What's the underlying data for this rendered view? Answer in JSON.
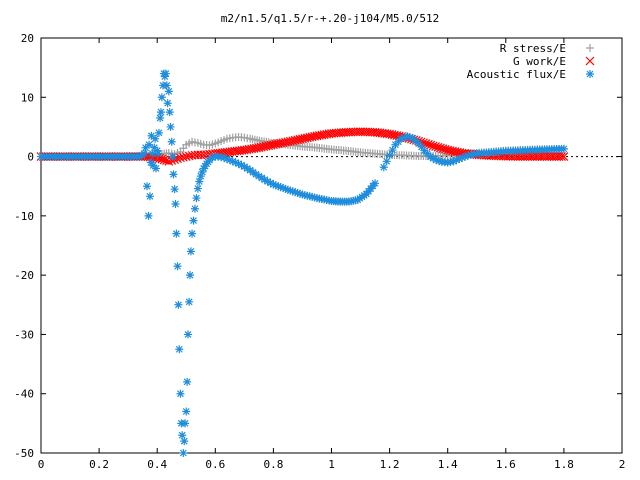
{
  "chart_data": {
    "type": "scatter",
    "title": "m2/n1.5/q1.5/r-+.20-j104/M5.0/512",
    "xlabel": "",
    "ylabel": "",
    "xlim": [
      0,
      2
    ],
    "ylim": [
      -50,
      20
    ],
    "grid": false,
    "legend_position": "top-right",
    "x_ticks": [
      "0",
      "0.2",
      "0.4",
      "0.6",
      "0.8",
      "1",
      "1.2",
      "1.4",
      "1.6",
      "1.8",
      "2"
    ],
    "y_ticks": [
      "20",
      "10",
      "0",
      "-10",
      "-20",
      "-30",
      "-40",
      "-50"
    ],
    "series": [
      {
        "name": "R stress/E",
        "marker": "plus",
        "color": "#a0a0a0",
        "x": [
          0.0,
          0.1,
          0.2,
          0.3,
          0.36,
          0.4,
          0.44,
          0.46,
          0.48,
          0.5,
          0.52,
          0.54,
          0.56,
          0.58,
          0.6,
          0.62,
          0.64,
          0.66,
          0.68,
          0.7,
          0.72,
          0.76,
          0.8,
          0.85,
          0.9,
          0.95,
          1.0,
          1.05,
          1.1,
          1.15,
          1.2,
          1.25,
          1.3,
          1.35,
          1.4,
          1.45,
          1.5,
          1.55,
          1.6,
          1.65,
          1.7,
          1.75,
          1.8
        ],
        "y": [
          0,
          0,
          0,
          0,
          0.1,
          0.3,
          0.6,
          0.4,
          0.8,
          2.0,
          2.5,
          2.3,
          2.0,
          1.9,
          2.2,
          2.6,
          3.0,
          3.2,
          3.3,
          3.2,
          3.0,
          2.6,
          2.3,
          2.0,
          1.7,
          1.5,
          1.2,
          1.0,
          0.7,
          0.5,
          0.3,
          0.2,
          0.1,
          0.1,
          0.2,
          0.4,
          0.6,
          0.8,
          1.0,
          1.1,
          1.2,
          1.25,
          1.3
        ]
      },
      {
        "name": "G work/E",
        "marker": "cross",
        "color": "#ff0000",
        "x": [
          0.0,
          0.1,
          0.2,
          0.3,
          0.36,
          0.4,
          0.44,
          0.46,
          0.48,
          0.5,
          0.52,
          0.54,
          0.56,
          0.58,
          0.6,
          0.65,
          0.7,
          0.75,
          0.8,
          0.85,
          0.9,
          0.95,
          1.0,
          1.05,
          1.1,
          1.15,
          1.2,
          1.25,
          1.3,
          1.35,
          1.4,
          1.45,
          1.5,
          1.55,
          1.6,
          1.65,
          1.7,
          1.75,
          1.8
        ],
        "y": [
          0,
          0,
          0,
          0,
          0,
          -0.2,
          -0.8,
          -0.5,
          -0.2,
          0,
          0.2,
          0.3,
          0.3,
          0.4,
          0.5,
          0.8,
          1.1,
          1.5,
          2.0,
          2.5,
          3.0,
          3.5,
          3.9,
          4.1,
          4.2,
          4.1,
          3.8,
          3.3,
          2.6,
          1.8,
          1.1,
          0.6,
          0.3,
          0.15,
          0.05,
          0,
          0,
          0,
          0
        ]
      },
      {
        "name": "Acoustic flux/E",
        "marker": "star",
        "color": "#1f8ddc",
        "x": [
          0.0,
          0.02,
          0.04,
          0.06,
          0.08,
          0.1,
          0.12,
          0.14,
          0.16,
          0.18,
          0.2,
          0.22,
          0.24,
          0.26,
          0.28,
          0.3,
          0.32,
          0.34,
          0.355,
          0.36,
          0.365,
          0.37,
          0.372,
          0.375,
          0.378,
          0.38,
          0.383,
          0.386,
          0.39,
          0.393,
          0.396,
          0.4,
          0.403,
          0.406,
          0.41,
          0.413,
          0.416,
          0.42,
          0.423,
          0.426,
          0.43,
          0.433,
          0.436,
          0.44,
          0.443,
          0.446,
          0.45,
          0.453,
          0.456,
          0.46,
          0.463,
          0.466,
          0.47,
          0.473,
          0.476,
          0.48,
          0.483,
          0.486,
          0.49,
          0.493,
          0.496,
          0.5,
          0.503,
          0.506,
          0.51,
          0.513,
          0.516,
          0.52,
          0.525,
          0.53,
          0.535,
          0.54,
          0.545,
          0.55,
          0.555,
          0.56,
          0.565,
          0.57,
          0.575,
          0.58,
          0.59,
          0.6,
          0.61,
          0.62,
          0.63,
          0.64,
          0.65,
          0.66,
          0.68,
          0.7,
          0.72,
          0.74,
          0.76,
          0.78,
          0.8,
          0.85,
          0.9,
          0.95,
          1.0,
          1.03,
          1.06,
          1.09,
          1.12,
          1.15,
          1.18,
          1.2,
          1.22,
          1.24,
          1.26,
          1.28,
          1.3,
          1.32,
          1.34,
          1.36,
          1.38,
          1.4,
          1.42,
          1.44,
          1.46,
          1.48,
          1.5,
          1.55,
          1.6,
          1.65,
          1.7,
          1.75,
          1.8
        ],
        "y": [
          0,
          0,
          0,
          0,
          0,
          0,
          0,
          0,
          0,
          0,
          0,
          0,
          0,
          0,
          0,
          0,
          0,
          0,
          0.5,
          1.5,
          -5,
          -10,
          2,
          -6.7,
          -1,
          3.5,
          0.5,
          -1.5,
          1.5,
          3,
          -2,
          1,
          0.5,
          4,
          6.5,
          7.5,
          10,
          12,
          14,
          13.5,
          14,
          12,
          9,
          11,
          7.5,
          5,
          2.5,
          0,
          -3,
          -5.5,
          -8,
          -13,
          -18.5,
          -25,
          -32.5,
          -40,
          -45,
          -47,
          -50,
          -48,
          -45,
          -43,
          -38,
          -30,
          -24.5,
          -20,
          -16,
          -13,
          -10.8,
          -8.8,
          -7,
          -5.4,
          -4.2,
          -3.3,
          -2.6,
          -2,
          -1.6,
          -1.2,
          -0.9,
          -0.6,
          -0.2,
          0,
          0,
          -0.1,
          -0.2,
          -0.4,
          -0.6,
          -0.8,
          -1.2,
          -1.7,
          -2.3,
          -3,
          -3.6,
          -4.2,
          -4.7,
          -5.6,
          -6.4,
          -7.0,
          -7.5,
          -7.6,
          -7.6,
          -7.3,
          -6.3,
          -4.5,
          -1.8,
          0.2,
          2.0,
          3.0,
          3.4,
          3.1,
          2.2,
          1.0,
          0,
          -0.6,
          -0.9,
          -1.0,
          -0.8,
          -0.4,
          0,
          0.3,
          0.5,
          0.7,
          0.9,
          1.0,
          1.1,
          1.2,
          1.3
        ]
      }
    ]
  }
}
